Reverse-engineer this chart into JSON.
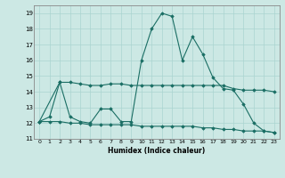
{
  "xlabel": "Humidex (Indice chaleur)",
  "bg_color": "#cce8e4",
  "grid_color": "#aad4d0",
  "line_color": "#1a6e64",
  "xlim": [
    -0.5,
    23.5
  ],
  "ylim": [
    11,
    19.5
  ],
  "yticks": [
    11,
    12,
    13,
    14,
    15,
    16,
    17,
    18,
    19
  ],
  "xticks": [
    0,
    1,
    2,
    3,
    4,
    5,
    6,
    7,
    8,
    9,
    10,
    11,
    12,
    13,
    14,
    15,
    16,
    17,
    18,
    19,
    20,
    21,
    22,
    23
  ],
  "series1_x": [
    0,
    1,
    2,
    3,
    4,
    5,
    6,
    7,
    8,
    9,
    10,
    11,
    12,
    13,
    14,
    15,
    16,
    17,
    18,
    19,
    20,
    21,
    22,
    23
  ],
  "series1_y": [
    12.1,
    12.4,
    14.6,
    12.4,
    12.1,
    12.0,
    12.9,
    12.9,
    12.1,
    12.1,
    16.0,
    18.0,
    19.0,
    18.8,
    16.0,
    17.5,
    16.4,
    14.9,
    14.2,
    14.1,
    13.2,
    12.0,
    11.5,
    11.4
  ],
  "series2_x": [
    0,
    2,
    3,
    4,
    5,
    6,
    7,
    8,
    9,
    10,
    11,
    12,
    13,
    14,
    15,
    16,
    17,
    18,
    19,
    20,
    21,
    22,
    23
  ],
  "series2_y": [
    12.1,
    14.6,
    14.6,
    14.5,
    14.4,
    14.4,
    14.5,
    14.5,
    14.4,
    14.4,
    14.4,
    14.4,
    14.4,
    14.4,
    14.4,
    14.4,
    14.4,
    14.4,
    14.2,
    14.1,
    14.1,
    14.1,
    14.0
  ],
  "series3_x": [
    0,
    1,
    2,
    3,
    4,
    5,
    6,
    7,
    8,
    9,
    10,
    11,
    12,
    13,
    14,
    15,
    16,
    17,
    18,
    19,
    20,
    21,
    22,
    23
  ],
  "series3_y": [
    12.1,
    12.1,
    12.1,
    12.0,
    12.0,
    11.9,
    11.9,
    11.9,
    11.9,
    11.9,
    11.8,
    11.8,
    11.8,
    11.8,
    11.8,
    11.8,
    11.7,
    11.7,
    11.6,
    11.6,
    11.5,
    11.5,
    11.5,
    11.4
  ]
}
